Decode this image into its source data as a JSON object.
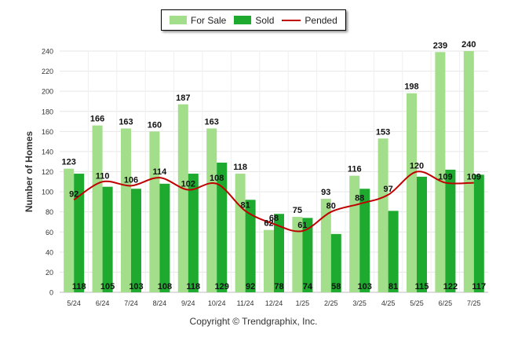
{
  "chart_data": {
    "type": "bar",
    "categories": [
      "5/24",
      "6/24",
      "7/24",
      "8/24",
      "9/24",
      "10/24",
      "11/24",
      "12/24",
      "1/25",
      "2/25",
      "3/25",
      "4/25",
      "5/25",
      "6/25",
      "7/25"
    ],
    "series": [
      {
        "name": "For Sale",
        "type": "bar",
        "color": "#a3de8a",
        "values": [
          123,
          166,
          163,
          160,
          187,
          163,
          118,
          62,
          75,
          93,
          116,
          153,
          198,
          239,
          240
        ]
      },
      {
        "name": "Sold",
        "type": "bar",
        "color": "#1daa2e",
        "values": [
          118,
          105,
          103,
          108,
          118,
          129,
          92,
          78,
          74,
          58,
          103,
          81,
          115,
          122,
          117
        ]
      },
      {
        "name": "Pended",
        "type": "line",
        "color": "#c00000",
        "values": [
          92,
          110,
          106,
          114,
          102,
          108,
          81,
          68,
          61,
          80,
          88,
          97,
          120,
          109,
          109
        ]
      }
    ],
    "ylabel": "Number of Homes",
    "ylim": [
      0,
      240
    ],
    "yticks": [
      0,
      20,
      40,
      60,
      80,
      100,
      120,
      140,
      160,
      180,
      200,
      220,
      240
    ],
    "grid": true,
    "legend_position": "top-center"
  },
  "legend": {
    "items": [
      {
        "label": "For Sale",
        "color": "#a3de8a",
        "kind": "bar"
      },
      {
        "label": "Sold",
        "color": "#1daa2e",
        "kind": "bar"
      },
      {
        "label": "Pended",
        "color": "#c00000",
        "kind": "line"
      }
    ]
  },
  "footer": {
    "copyright": "Copyright © Trendgraphix, Inc."
  }
}
